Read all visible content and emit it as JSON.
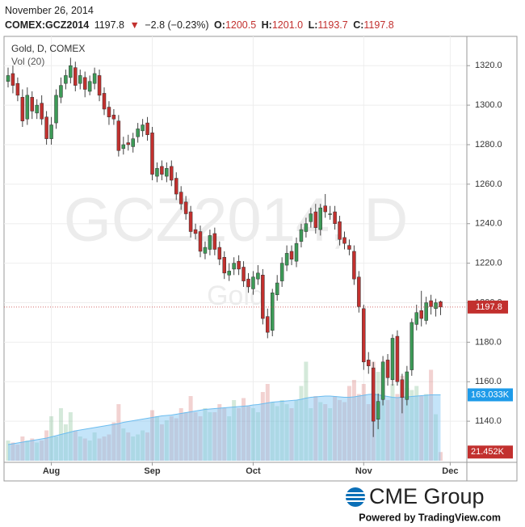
{
  "header": {
    "date": "November 26, 2014",
    "symbol": "COMEX:GCZ2014",
    "last": "1197.8",
    "arrow": "▼",
    "change": "−2.8 (−0.23%)",
    "o_label": "O:",
    "o": "1200.5",
    "h_label": "H:",
    "h": "1201.0",
    "l_label": "L:",
    "l": "1193.7",
    "c_label": "C:",
    "c": "1197.8"
  },
  "chart_data": {
    "type": "candlestick",
    "title": "Gold, D, COMEX",
    "volume_title": "Vol (20)",
    "watermark": "GCZ2014, D",
    "watermark_sub": "Gold",
    "categories": [
      null,
      null,
      null,
      null,
      null,
      null,
      null,
      null,
      null,
      "Aug",
      null,
      null,
      null,
      null,
      null,
      null,
      null,
      null,
      null,
      null,
      null,
      null,
      null,
      null,
      null,
      null,
      null,
      null,
      null,
      null,
      "Sep",
      null,
      null,
      null,
      null,
      null,
      null,
      null,
      null,
      null,
      null,
      null,
      null,
      null,
      null,
      null,
      null,
      null,
      null,
      null,
      null,
      "Oct",
      null,
      null,
      null,
      null,
      null,
      null,
      null,
      null,
      null,
      null,
      null,
      null,
      null,
      null,
      null,
      null,
      null,
      null,
      null,
      null,
      null,
      null,
      "Nov",
      null,
      null,
      null,
      null,
      null,
      null,
      null,
      null,
      null,
      null,
      null,
      null,
      null,
      null,
      null,
      null,
      null,
      "Dec"
    ],
    "open": [
      1312,
      1316,
      1311,
      1304,
      1293,
      1304,
      1296,
      1301,
      1294,
      1283,
      1291,
      1304,
      1311,
      1314,
      1319,
      1311,
      1314,
      1307,
      1311,
      1315,
      1306,
      1299,
      1295,
      1292,
      1278,
      1281,
      1279,
      1284,
      1287,
      1291,
      1286,
      1264,
      1269,
      1264,
      1269,
      1263,
      1256,
      1251,
      1246,
      1237,
      1236,
      1225,
      1227,
      1235,
      1228,
      1223,
      1214,
      1217,
      1221,
      1218,
      1212,
      1207,
      1212,
      1214,
      1193,
      1186,
      1204,
      1211,
      1219,
      1226,
      1221,
      1231,
      1236,
      1241,
      1246,
      1237,
      1249,
      1245,
      1246,
      1241,
      1233,
      1229,
      1226,
      1213,
      1197,
      1171,
      1167,
      1141,
      1151,
      1171,
      1161,
      1183,
      1161,
      1151,
      1166,
      1189,
      1196,
      1191,
      1201,
      1197,
      1200.5,
      null,
      null
    ],
    "high": [
      1319,
      1320,
      1314,
      1308,
      1309,
      1307,
      1303,
      1305,
      1297,
      1294,
      1308,
      1314,
      1318,
      1324,
      1322,
      1318,
      1317,
      1315,
      1319,
      1318,
      1309,
      1302,
      1298,
      1295,
      1284,
      1285,
      1286,
      1291,
      1293,
      1294,
      1289,
      1271,
      1272,
      1271,
      1272,
      1266,
      1259,
      1254,
      1249,
      1240,
      1239,
      1231,
      1237,
      1238,
      1231,
      1226,
      1220,
      1223,
      1224,
      1221,
      1215,
      1216,
      1219,
      1217,
      1197,
      1207,
      1214,
      1223,
      1229,
      1229,
      1233,
      1240,
      1243,
      1248,
      1250,
      1250,
      1255,
      1249,
      1249,
      1244,
      1236,
      1232,
      1229,
      1216,
      1199,
      1175,
      1170,
      1154,
      1173,
      1174,
      1184,
      1186,
      1164,
      1168,
      1192,
      1199,
      1206,
      1203,
      1204,
      1202,
      1201.0,
      null,
      null
    ],
    "low": [
      1309,
      1306,
      1302,
      1289,
      1290,
      1293,
      1293,
      1290,
      1280,
      1280,
      1288,
      1301,
      1308,
      1311,
      1307,
      1308,
      1304,
      1305,
      1308,
      1302,
      1295,
      1290,
      1290,
      1274,
      1275,
      1277,
      1276,
      1281,
      1284,
      1282,
      1262,
      1261,
      1262,
      1261,
      1259,
      1252,
      1247,
      1242,
      1233,
      1232,
      1223,
      1222,
      1224,
      1224,
      1219,
      1212,
      1211,
      1214,
      1214,
      1208,
      1205,
      1204,
      1209,
      1189,
      1182,
      1183,
      1201,
      1208,
      1216,
      1219,
      1218,
      1228,
      1233,
      1238,
      1235,
      1234,
      1243,
      1242,
      1237,
      1229,
      1227,
      1224,
      1209,
      1195,
      1166,
      1164,
      1132,
      1136,
      1148,
      1158,
      1158,
      1158,
      1144,
      1148,
      1163,
      1186,
      1188,
      1189,
      1194,
      1193,
      1193.7,
      null,
      null
    ],
    "close": [
      1315,
      1310,
      1305,
      1292,
      1305,
      1297,
      1300,
      1293,
      1283,
      1290,
      1305,
      1310,
      1315,
      1320,
      1310,
      1315,
      1308,
      1312,
      1316,
      1305,
      1298,
      1294,
      1293,
      1277,
      1280,
      1280,
      1283,
      1288,
      1290,
      1285,
      1265,
      1268,
      1265,
      1268,
      1262,
      1255,
      1250,
      1245,
      1236,
      1235,
      1226,
      1228,
      1234,
      1227,
      1222,
      1215,
      1216,
      1220,
      1217,
      1211,
      1208,
      1213,
      1215,
      1192,
      1185,
      1205,
      1210,
      1220,
      1225,
      1222,
      1230,
      1237,
      1240,
      1245,
      1238,
      1248,
      1246,
      1245,
      1240,
      1232,
      1230,
      1227,
      1212,
      1198,
      1170,
      1168,
      1140,
      1150,
      1170,
      1162,
      1182,
      1160,
      1152,
      1165,
      1190,
      1195,
      1192,
      1200,
      1198,
      1200,
      1197.8,
      null,
      null
    ],
    "up_color": "#3d9a57",
    "down_color": "#c2302e",
    "volume": {
      "values": [
        50,
        45,
        40,
        60,
        50,
        55,
        45,
        50,
        75,
        110,
        60,
        130,
        90,
        120,
        75,
        60,
        55,
        50,
        70,
        55,
        60,
        65,
        95,
        140,
        80,
        70,
        60,
        65,
        75,
        70,
        125,
        110,
        90,
        100,
        110,
        105,
        130,
        120,
        160,
        120,
        110,
        130,
        120,
        120,
        140,
        130,
        110,
        150,
        130,
        155,
        135,
        130,
        120,
        170,
        190,
        145,
        135,
        150,
        140,
        130,
        150,
        185,
        245,
        130,
        160,
        145,
        140,
        130,
        160,
        150,
        145,
        185,
        200,
        165,
        190,
        140,
        245,
        220,
        230,
        150,
        190,
        165,
        210,
        180,
        175,
        185,
        160,
        165,
        225,
        115,
        21.452,
        null,
        null
      ],
      "value_labels": [
        null,
        null,
        null,
        null,
        null,
        null,
        null,
        null,
        null,
        null,
        null,
        null,
        null,
        null,
        null,
        null,
        null,
        null,
        null,
        null,
        null,
        null,
        null,
        null,
        null,
        null,
        null,
        null,
        null,
        null,
        null,
        null,
        null,
        null,
        null,
        null,
        null,
        null,
        null,
        null,
        null,
        null,
        null,
        null,
        null,
        null,
        null,
        null,
        null,
        null,
        null,
        null,
        null,
        null,
        null,
        null,
        null,
        null,
        null,
        null,
        null,
        null,
        null,
        null,
        null,
        null,
        null,
        null,
        null,
        null,
        null,
        null,
        null,
        null,
        null,
        null,
        null,
        null,
        null,
        null,
        null,
        null,
        null,
        null,
        null,
        null,
        null,
        null,
        null,
        null,
        "21.452K",
        null,
        null
      ]
    },
    "volume_ma": {
      "values": [
        40,
        42,
        44,
        46,
        48,
        50,
        52,
        54,
        56,
        59,
        62,
        65,
        68,
        71,
        74,
        76,
        78,
        80,
        82,
        84,
        86,
        88,
        90,
        92,
        95,
        97,
        99,
        101,
        103,
        105,
        107,
        109,
        111,
        112,
        113,
        115,
        117,
        119,
        121,
        123,
        125,
        127,
        128,
        129,
        130,
        131,
        132,
        133,
        134,
        135,
        136,
        138,
        139,
        141,
        143,
        145,
        146,
        147,
        148,
        149,
        150,
        152,
        155,
        157,
        158,
        159,
        160,
        160,
        159,
        158,
        157,
        157,
        158,
        160,
        162,
        164,
        165,
        163,
        161,
        159,
        157,
        156,
        157,
        158,
        159,
        160,
        161,
        162,
        163,
        163,
        163.033,
        null,
        null
      ],
      "value_labels": [
        null,
        null,
        null,
        null,
        null,
        null,
        null,
        null,
        null,
        null,
        null,
        null,
        null,
        null,
        null,
        null,
        null,
        null,
        null,
        null,
        null,
        null,
        null,
        null,
        null,
        null,
        null,
        null,
        null,
        null,
        null,
        null,
        null,
        null,
        null,
        null,
        null,
        null,
        null,
        null,
        null,
        null,
        null,
        null,
        null,
        null,
        null,
        null,
        null,
        null,
        null,
        null,
        null,
        null,
        null,
        null,
        null,
        null,
        null,
        null,
        null,
        null,
        null,
        null,
        null,
        null,
        null,
        null,
        null,
        null,
        null,
        null,
        null,
        null,
        null,
        null,
        null,
        null,
        null,
        null,
        null,
        null,
        null,
        null,
        null,
        null,
        null,
        null,
        null,
        null,
        "163.033K",
        null,
        null
      ]
    },
    "ylim": [
      1120,
      1334
    ],
    "yticks": [
      {
        "value": 1140,
        "label": "1140.0"
      },
      {
        "value": 1160,
        "label": "1160.0"
      },
      {
        "value": 1180,
        "label": "1180.0"
      },
      {
        "value": 1200,
        "label": "1200.0"
      },
      {
        "value": 1220,
        "label": "1220.0"
      },
      {
        "value": 1240,
        "label": "1240.0"
      },
      {
        "value": 1260,
        "label": "1260.0"
      },
      {
        "value": 1280,
        "label": "1280.0"
      },
      {
        "value": 1300,
        "label": "1300.0"
      },
      {
        "value": 1320,
        "label": "1320.0"
      }
    ],
    "grid": true
  },
  "footer": {
    "logo": "CME Group",
    "powered": "Powered by TradingView.com"
  }
}
